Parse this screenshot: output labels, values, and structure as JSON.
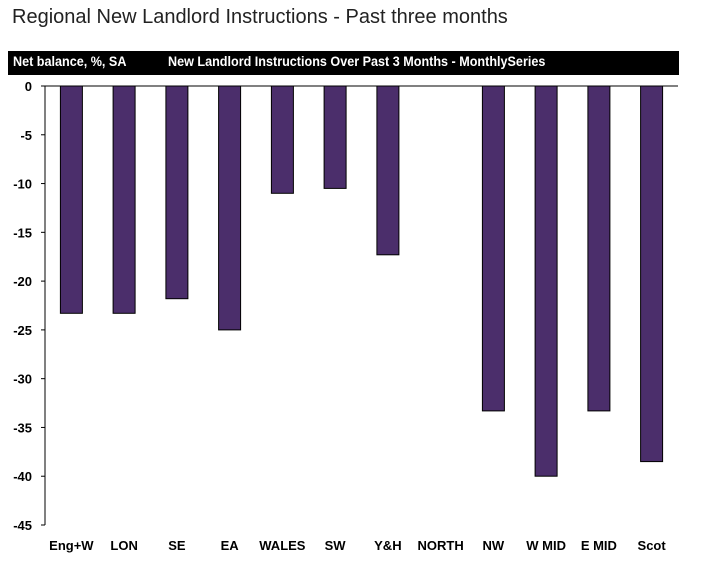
{
  "chart_data": {
    "type": "bar",
    "title": "Regional New Landlord Instructions - Past three months",
    "ylabel": "Net balance, %, SA",
    "series_label": "New Landlord Instructions Over Past 3 Months - MonthlySeries",
    "categories": [
      "Eng+W",
      "LON",
      "SE",
      "EA",
      "WALES",
      "SW",
      "Y&H",
      "NORTH",
      "NW",
      "W MID",
      "E MID",
      "Scot"
    ],
    "values": [
      -23.3,
      -23.3,
      -21.8,
      -25.0,
      -11.0,
      -10.5,
      -17.3,
      0,
      -33.3,
      -40.0,
      -33.3,
      -38.5
    ],
    "yticks": [
      0,
      -5,
      -10,
      -15,
      -20,
      -25,
      -30,
      -35,
      -40,
      -45
    ],
    "ylim": [
      -45,
      0
    ],
    "bar_color": "#4b2e6b",
    "legend": "none",
    "grid": false
  }
}
